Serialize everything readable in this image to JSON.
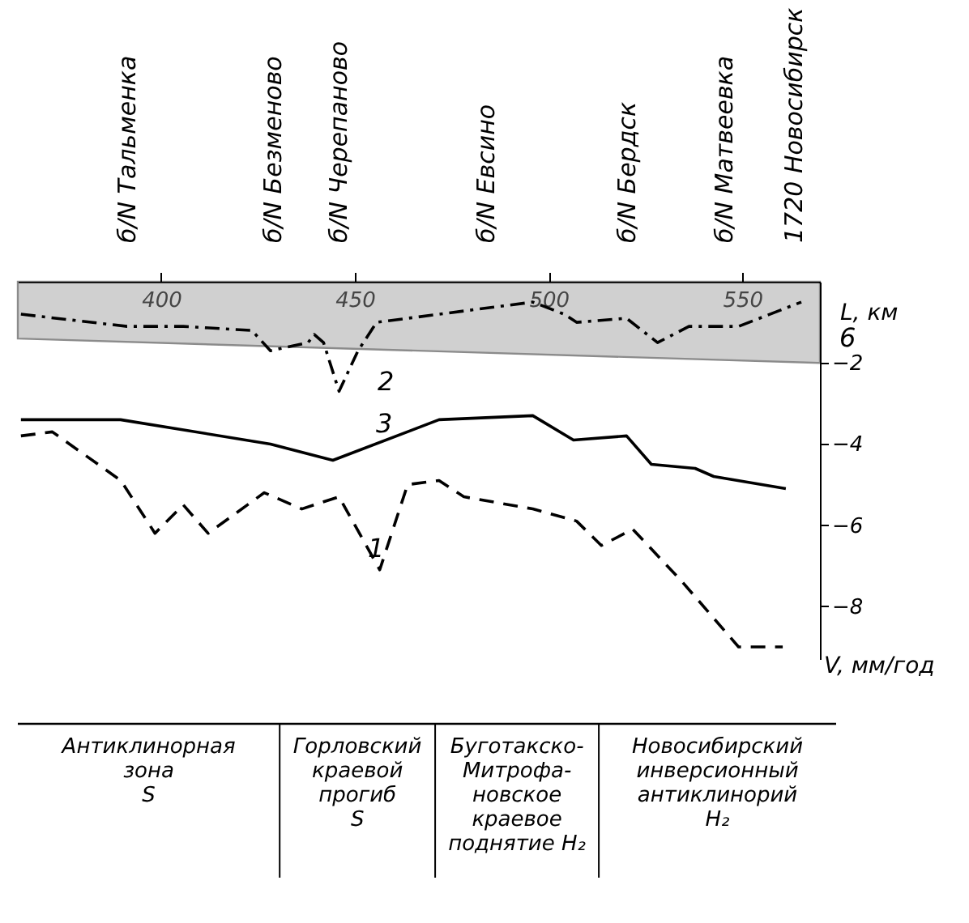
{
  "chart_data": {
    "type": "line",
    "xlabel": "L, км",
    "ylabel": "V, мм/год",
    "xlim": [
      363,
      570
    ],
    "xticks": [
      400,
      450,
      500,
      550
    ],
    "ylim": [
      -9.3,
      0
    ],
    "yticks": [
      -2,
      -4,
      -6,
      -8
    ],
    "grid": false,
    "marker": "none",
    "series": [
      {
        "type": "area",
        "color": "#999999",
        "x": [
          363,
          570
        ],
        "values": [
          -1.4,
          -2.0
        ]
      },
      {
        "type": "line",
        "color": "#000000",
        "line_style": "dashed",
        "x": [
          363.8,
          371.9,
          389.6,
          398.4,
          405.7,
          412.1,
          426.6,
          436.3,
          445.9,
          456.4,
          463.6,
          471.7,
          478.1,
          495.9,
          507.2,
          513.6,
          521.7,
          534.5,
          549.0,
          560.4
        ],
        "values": [
          -3.8,
          -3.7,
          -4.9,
          -6.2,
          -5.5,
          -6.2,
          -5.2,
          -5.6,
          -5.3,
          -7.1,
          -5.0,
          -4.9,
          -5.3,
          -5.6,
          -5.9,
          -6.5,
          -6.1,
          -7.4,
          -9.0,
          -9.0
        ]
      },
      {
        "type": "line",
        "color": "#000000",
        "line_style": "dashdot",
        "x": [
          363.8,
          391.2,
          405.7,
          423.4,
          428.2,
          437.9,
          439.5,
          441.9,
          445.9,
          450.8,
          455.6,
          471.7,
          495.9,
          504.0,
          507.2,
          520.1,
          528.1,
          536.2,
          549.0,
          565.2
        ],
        "values": [
          -0.8,
          -1.1,
          -1.1,
          -1.2,
          -1.7,
          -1.5,
          -1.3,
          -1.5,
          -2.7,
          -1.7,
          -1.0,
          -0.8,
          -0.5,
          -0.8,
          -1.0,
          -0.9,
          -1.5,
          -1.1,
          -1.1,
          -0.5
        ]
      },
      {
        "type": "line",
        "color": "#000000",
        "line_style": "solid",
        "x": [
          363.8,
          375.1,
          389.5,
          428.2,
          444.3,
          471.7,
          495.9,
          506.4,
          520.1,
          526.5,
          537.8,
          542.6,
          561.2
        ],
        "values": [
          -3.4,
          -3.4,
          -3.4,
          -4.0,
          -4.4,
          -3.4,
          -3.3,
          -3.9,
          -3.8,
          -4.5,
          -4.6,
          -4.8,
          -5.1
        ]
      }
    ],
    "annotations": [
      {
        "text": "б/N Тальменка",
        "x": 391.2,
        "y": 0
      },
      {
        "text": "б/N Безменово",
        "x": 428.9,
        "y": 0
      },
      {
        "text": "б/N Черепаново",
        "x": 445.7,
        "y": 0
      },
      {
        "text": "б/N Евсино",
        "x": 483.8,
        "y": 0
      },
      {
        "text": "б/N Бердск",
        "x": 520.2,
        "y": 0
      },
      {
        "text": "б/N Матвеевка",
        "x": 545.4,
        "y": 0
      },
      {
        "text": "1720 Новосибирск",
        "x": 563.4,
        "y": 0
      },
      "1",
      "2",
      "3",
      "6",
      "Антиклинорная\nзона\nS",
      "Горловский\nкраевой\nпрогиб\nS",
      "Буготакско-\nМитрофа-\nновское\nкраевое\nподнятие H₂",
      "Новосибирский\nинверсионный\nантиклинорий\nH₂"
    ]
  }
}
